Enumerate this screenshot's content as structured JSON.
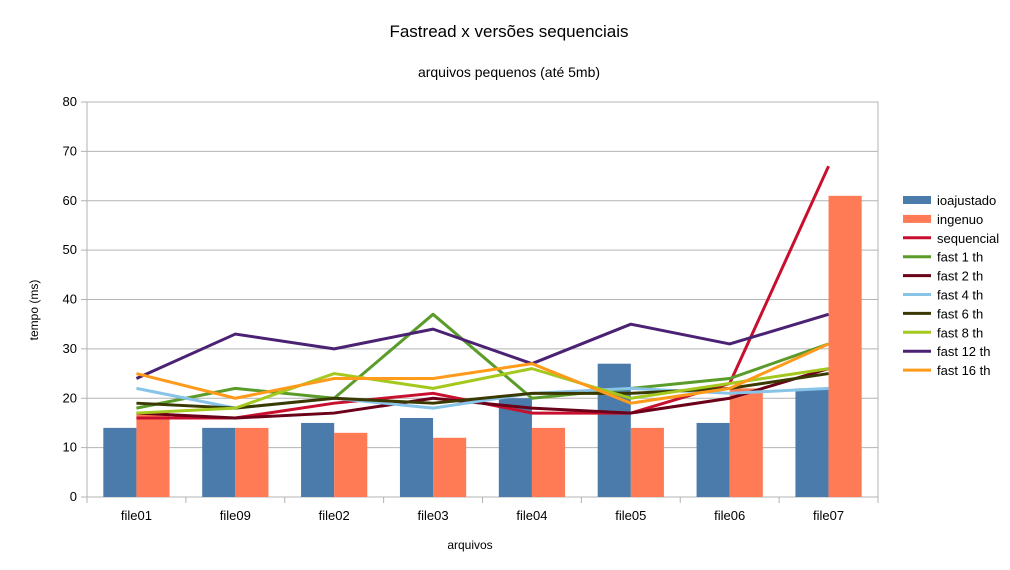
{
  "chart_data": {
    "type": "bar",
    "title": "Fastread x versões sequenciais",
    "subtitle": "arquivos pequenos (até 5mb)",
    "xlabel": "arquivos",
    "ylabel": "tempo (ms)",
    "ylim": [
      0,
      80
    ],
    "yticks": [
      0,
      10,
      20,
      30,
      40,
      50,
      60,
      70,
      80
    ],
    "grid": true,
    "legend_position": "right",
    "categories": [
      "file01",
      "file09",
      "file02",
      "file03",
      "file04",
      "file05",
      "file06",
      "file07"
    ],
    "bar_series": [
      {
        "name": "ioajustado",
        "color": "#4a7bab",
        "values": [
          14,
          14,
          15,
          16,
          20,
          27,
          15,
          22
        ]
      },
      {
        "name": "ingenuo",
        "color": "#ff7b56",
        "values": [
          17,
          14,
          13,
          12,
          14,
          14,
          22,
          61
        ]
      }
    ],
    "line_series": [
      {
        "name": "sequencial",
        "color": "#c8102e",
        "values": [
          16,
          16,
          19,
          21,
          17,
          17,
          23,
          67
        ]
      },
      {
        "name": "fast  1 th",
        "color": "#5a9b2a",
        "values": [
          18,
          22,
          20,
          37,
          20,
          22,
          24,
          31
        ]
      },
      {
        "name": "fast  2 th",
        "color": "#6b0019",
        "values": [
          17,
          16,
          17,
          20,
          18,
          17,
          20,
          26
        ]
      },
      {
        "name": "fast  4 th",
        "color": "#87c4e8",
        "values": [
          22,
          18,
          20,
          18,
          21,
          22,
          21,
          22
        ]
      },
      {
        "name": "fast  6 th",
        "color": "#3a3a00",
        "values": [
          19,
          18,
          20,
          19,
          21,
          21,
          22,
          25
        ]
      },
      {
        "name": "fast   8 th",
        "color": "#a4c81e",
        "values": [
          17,
          18,
          25,
          22,
          26,
          20,
          23,
          26
        ]
      },
      {
        "name": "fast 12 th",
        "color": "#4b2273",
        "values": [
          24,
          33,
          30,
          34,
          27,
          35,
          31,
          37
        ]
      },
      {
        "name": "fast 16 th",
        "color": "#ff9a1a",
        "values": [
          25,
          20,
          24,
          24,
          27,
          19,
          22,
          31
        ]
      }
    ]
  }
}
